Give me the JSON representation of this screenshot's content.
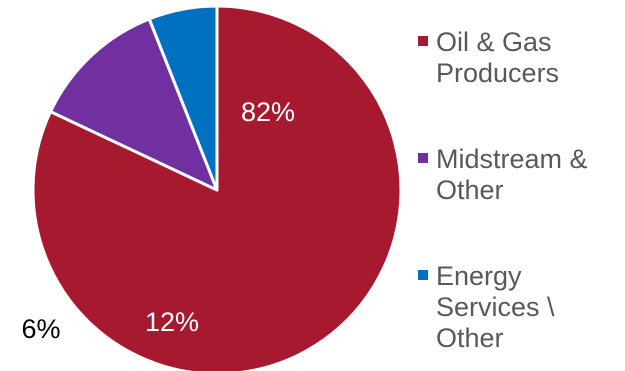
{
  "chart_data": {
    "type": "pie",
    "title": "",
    "slices": [
      {
        "label": "Oil & Gas Producers",
        "value": 82,
        "value_label": "82%",
        "color": "#A6192E",
        "label_color": "#ffffff"
      },
      {
        "label": "Midstream & Other",
        "value": 12,
        "value_label": "12%",
        "color": "#7030A0",
        "label_color": "#ffffff"
      },
      {
        "label": "Energy Services \\ Other",
        "value": 6,
        "value_label": "6%",
        "color": "#0070C0",
        "label_color": "#000000"
      }
    ],
    "start_angle_deg": 0,
    "direction": "clockwise",
    "legend_position": "right",
    "legend_lines": [
      [
        "Oil & Gas",
        "Producers"
      ],
      [
        "Midstream &",
        "Other"
      ],
      [
        "Energy",
        "Services \\",
        "Other"
      ]
    ]
  }
}
